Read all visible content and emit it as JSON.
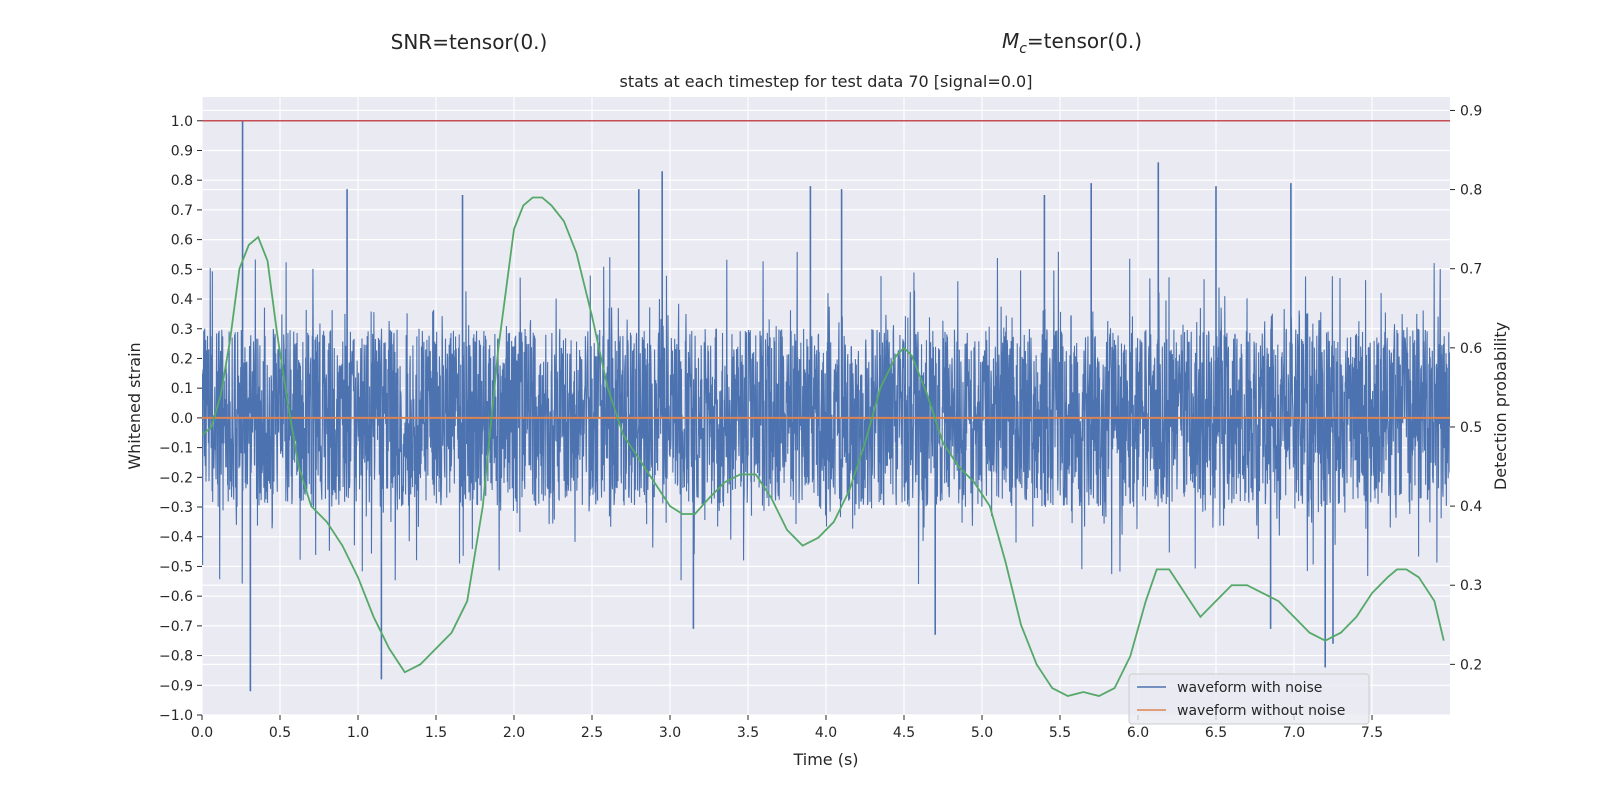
{
  "suptitles": {
    "snr": "SNR=tensor(0.)",
    "mc_symbol": "M",
    "mc_subscript": "c",
    "mc_value": "=tensor(0.)"
  },
  "chart_data": {
    "type": "line",
    "title": "stats at each timestep for test data 70 [signal=0.0]",
    "xlabel": "Time (s)",
    "ylabel": "Whitened strain",
    "y2label": "Detection probability",
    "xlim": [
      0.0,
      8.0
    ],
    "ylim": [
      -1.0,
      1.08
    ],
    "y2lim": [
      0.136,
      0.917
    ],
    "x_ticks": [
      0.0,
      0.5,
      1.0,
      1.5,
      2.0,
      2.5,
      3.0,
      3.5,
      4.0,
      4.5,
      5.0,
      5.5,
      6.0,
      6.5,
      7.0,
      7.5
    ],
    "x_tick_labels": [
      "0.0",
      "0.5",
      "1.0",
      "1.5",
      "2.0",
      "2.5",
      "3.0",
      "3.5",
      "4.0",
      "4.5",
      "5.0",
      "5.5",
      "6.0",
      "6.5",
      "7.0",
      "7.5"
    ],
    "y_ticks": [
      -1.0,
      -0.9,
      -0.8,
      -0.7,
      -0.6,
      -0.5,
      -0.4,
      -0.3,
      -0.2,
      -0.1,
      0.0,
      0.1,
      0.2,
      0.3,
      0.4,
      0.5,
      0.6,
      0.7,
      0.8,
      0.9,
      1.0
    ],
    "y_tick_labels": [
      "−1.0",
      "−0.9",
      "−0.8",
      "−0.7",
      "−0.6",
      "−0.5",
      "−0.4",
      "−0.3",
      "−0.2",
      "−0.1",
      "0.0",
      "0.1",
      "0.2",
      "0.3",
      "0.4",
      "0.5",
      "0.6",
      "0.7",
      "0.8",
      "0.9",
      "1.0"
    ],
    "y2_ticks": [
      0.2,
      0.3,
      0.4,
      0.5,
      0.6,
      0.7,
      0.8,
      0.9
    ],
    "y2_tick_labels": [
      "0.2",
      "0.3",
      "0.4",
      "0.5",
      "0.6",
      "0.7",
      "0.8",
      "0.9"
    ],
    "grid": true,
    "legend_position": "lower right",
    "series": [
      {
        "name": "waveform with noise",
        "color": "#4c72b0",
        "axis": "left",
        "kind": "noise",
        "sample_count": 4096,
        "core_amplitude": 0.3,
        "spikes": [
          {
            "x": 0.26,
            "y": 1.0
          },
          {
            "x": 0.31,
            "y": -0.92
          },
          {
            "x": 1.15,
            "y": -0.88
          },
          {
            "x": 1.67,
            "y": 0.75
          },
          {
            "x": 2.95,
            "y": 0.83
          },
          {
            "x": 2.8,
            "y": 0.77
          },
          {
            "x": 3.9,
            "y": 0.78
          },
          {
            "x": 4.1,
            "y": 0.77
          },
          {
            "x": 4.7,
            "y": -0.73
          },
          {
            "x": 5.4,
            "y": 0.75
          },
          {
            "x": 5.7,
            "y": 0.79
          },
          {
            "x": 6.13,
            "y": 0.86
          },
          {
            "x": 6.5,
            "y": 0.78
          },
          {
            "x": 6.98,
            "y": 0.79
          },
          {
            "x": 7.2,
            "y": -0.84
          },
          {
            "x": 7.25,
            "y": -0.76
          },
          {
            "x": 6.85,
            "y": -0.71
          },
          {
            "x": 3.15,
            "y": -0.71
          },
          {
            "x": 0.93,
            "y": 0.77
          }
        ]
      },
      {
        "name": "waveform without noise",
        "color": "#dd8452",
        "axis": "left",
        "x": [
          0.0,
          8.0
        ],
        "y": [
          0.0,
          0.0
        ]
      },
      {
        "name": "",
        "color": "#55a868",
        "axis": "right",
        "x": [
          0.0,
          0.06,
          0.12,
          0.18,
          0.24,
          0.3,
          0.36,
          0.42,
          0.48,
          0.55,
          0.62,
          0.7,
          0.8,
          0.9,
          1.0,
          1.1,
          1.2,
          1.3,
          1.4,
          1.5,
          1.6,
          1.7,
          1.8,
          1.9,
          2.0,
          2.06,
          2.12,
          2.18,
          2.24,
          2.32,
          2.4,
          2.5,
          2.6,
          2.7,
          2.8,
          2.9,
          3.0,
          3.08,
          3.16,
          3.25,
          3.35,
          3.45,
          3.55,
          3.65,
          3.75,
          3.85,
          3.95,
          4.05,
          4.15,
          4.25,
          4.35,
          4.45,
          4.5,
          4.55,
          4.65,
          4.75,
          4.85,
          4.95,
          5.05,
          5.15,
          5.25,
          5.35,
          5.45,
          5.55,
          5.65,
          5.75,
          5.85,
          5.95,
          6.05,
          6.12,
          6.2,
          6.3,
          6.4,
          6.5,
          6.6,
          6.7,
          6.8,
          6.9,
          7.0,
          7.1,
          7.2,
          7.3,
          7.4,
          7.5,
          7.6,
          7.66,
          7.72,
          7.8,
          7.9,
          7.96
        ],
        "y": [
          0.49,
          0.5,
          0.54,
          0.61,
          0.7,
          0.73,
          0.74,
          0.71,
          0.62,
          0.53,
          0.45,
          0.4,
          0.38,
          0.35,
          0.31,
          0.26,
          0.22,
          0.19,
          0.2,
          0.22,
          0.24,
          0.28,
          0.4,
          0.6,
          0.75,
          0.78,
          0.79,
          0.79,
          0.78,
          0.76,
          0.72,
          0.64,
          0.55,
          0.49,
          0.46,
          0.43,
          0.4,
          0.39,
          0.39,
          0.41,
          0.43,
          0.44,
          0.44,
          0.41,
          0.37,
          0.35,
          0.36,
          0.38,
          0.42,
          0.48,
          0.55,
          0.59,
          0.6,
          0.59,
          0.54,
          0.48,
          0.45,
          0.43,
          0.4,
          0.33,
          0.25,
          0.2,
          0.17,
          0.16,
          0.165,
          0.16,
          0.17,
          0.21,
          0.28,
          0.32,
          0.32,
          0.29,
          0.26,
          0.28,
          0.3,
          0.3,
          0.29,
          0.28,
          0.26,
          0.24,
          0.23,
          0.24,
          0.26,
          0.29,
          0.31,
          0.32,
          0.32,
          0.31,
          0.28,
          0.23
        ]
      }
    ],
    "hlines": [
      {
        "y": 1.0,
        "color": "#c44e52"
      }
    ]
  }
}
